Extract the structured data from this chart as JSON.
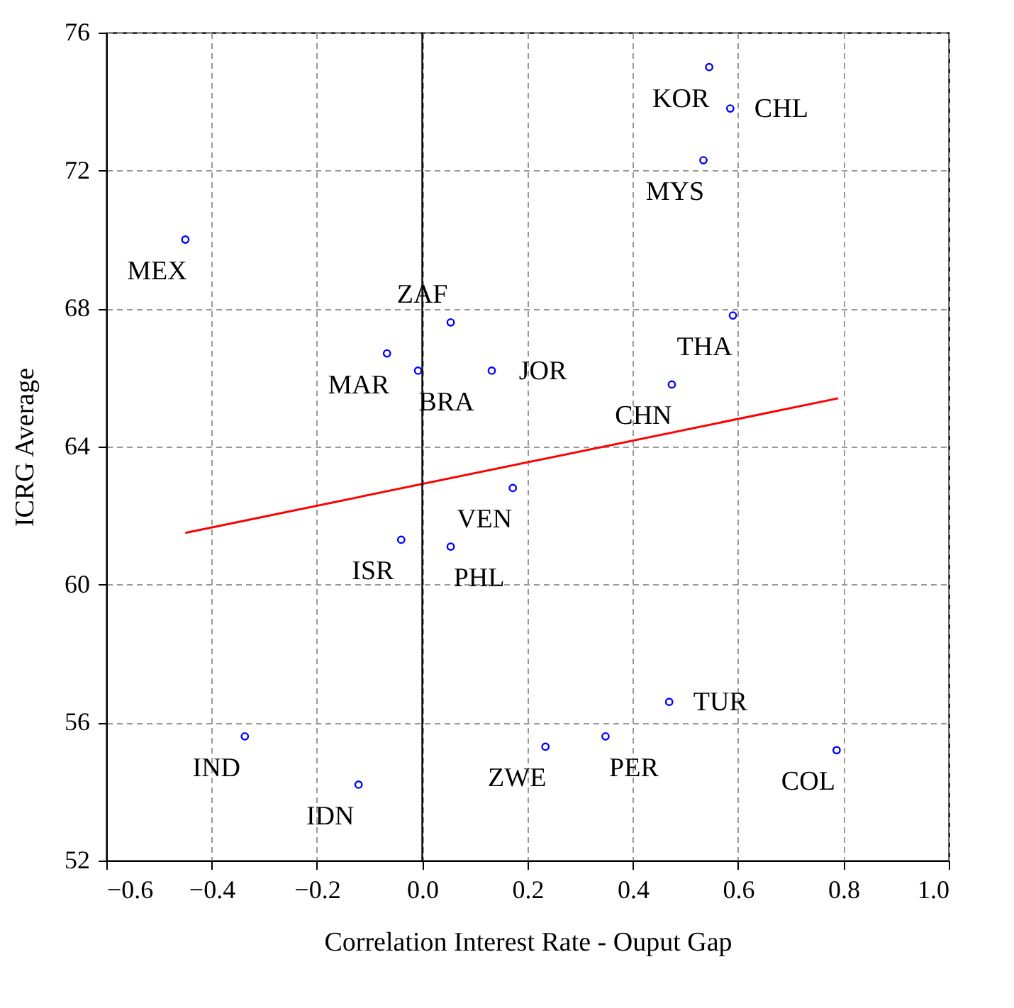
{
  "chart_data": {
    "type": "scatter",
    "xlabel": "Correlation Interest Rate - Ouput Gap",
    "ylabel": "ICRG Average",
    "xlim": [
      -0.6,
      1.0
    ],
    "ylim": [
      52,
      76
    ],
    "xticks": [
      -0.6,
      -0.4,
      -0.2,
      {
        "value": 0,
        "label": "0.0"
      },
      0.2,
      0.4,
      0.6,
      0.8,
      {
        "value": 1.0,
        "label": "1.0"
      }
    ],
    "yticks": [
      52,
      56,
      60,
      64,
      68,
      72,
      76
    ],
    "grid": true,
    "legend": false,
    "marker": "circle",
    "series": [
      {
        "color": "#0000ff",
        "x": [
          0.545,
          0.585,
          0.534,
          -0.45,
          0.054,
          -0.067,
          -0.008,
          0.132,
          0.59,
          0.474,
          0.172,
          -0.04,
          0.054,
          -0.337,
          -0.121,
          0.234,
          0.348,
          0.469,
          0.787
        ],
        "values": [
          75.0,
          73.8,
          72.3,
          70.0,
          67.6,
          66.7,
          66.2,
          66.2,
          67.8,
          65.8,
          62.8,
          61.3,
          61.1,
          55.6,
          54.2,
          55.3,
          55.6,
          56.6,
          55.2
        ]
      },
      {
        "type": "line",
        "color": "#ff0000",
        "marker": "none",
        "line_style": "solid",
        "x": [
          -0.45,
          0.79
        ],
        "values": [
          61.5,
          65.4
        ]
      }
    ],
    "ref_lines": [
      {
        "axis": "x",
        "value": 0,
        "color": "#000000",
        "line_style": "solid"
      }
    ],
    "annotations": [
      {
        "text": "KOR",
        "x": 0.545,
        "y": 75.0
      },
      {
        "text": "CHL",
        "x": 0.585,
        "y": 73.8
      },
      {
        "text": "MYS",
        "x": 0.534,
        "y": 72.3
      },
      {
        "text": "MEX",
        "x": -0.45,
        "y": 70.0
      },
      {
        "text": "ZAF",
        "x": 0.054,
        "y": 67.6
      },
      {
        "text": "MAR",
        "x": -0.067,
        "y": 66.7
      },
      {
        "text": "BRA",
        "x": -0.008,
        "y": 66.2
      },
      {
        "text": "JOR",
        "x": 0.132,
        "y": 66.2
      },
      {
        "text": "THA",
        "x": 0.59,
        "y": 67.8
      },
      {
        "text": "CHN",
        "x": 0.474,
        "y": 65.8
      },
      {
        "text": "VEN",
        "x": 0.172,
        "y": 62.8
      },
      {
        "text": "ISR",
        "x": -0.04,
        "y": 61.3
      },
      {
        "text": "PHL",
        "x": 0.054,
        "y": 61.1
      },
      {
        "text": "IND",
        "x": -0.337,
        "y": 55.6
      },
      {
        "text": "IDN",
        "x": -0.121,
        "y": 54.2
      },
      {
        "text": "ZWE",
        "x": 0.234,
        "y": 55.3
      },
      {
        "text": "PER",
        "x": 0.348,
        "y": 55.6
      },
      {
        "text": "TUR",
        "x": 0.469,
        "y": 56.6
      },
      {
        "text": "COL",
        "x": 0.787,
        "y": 55.2
      }
    ]
  }
}
